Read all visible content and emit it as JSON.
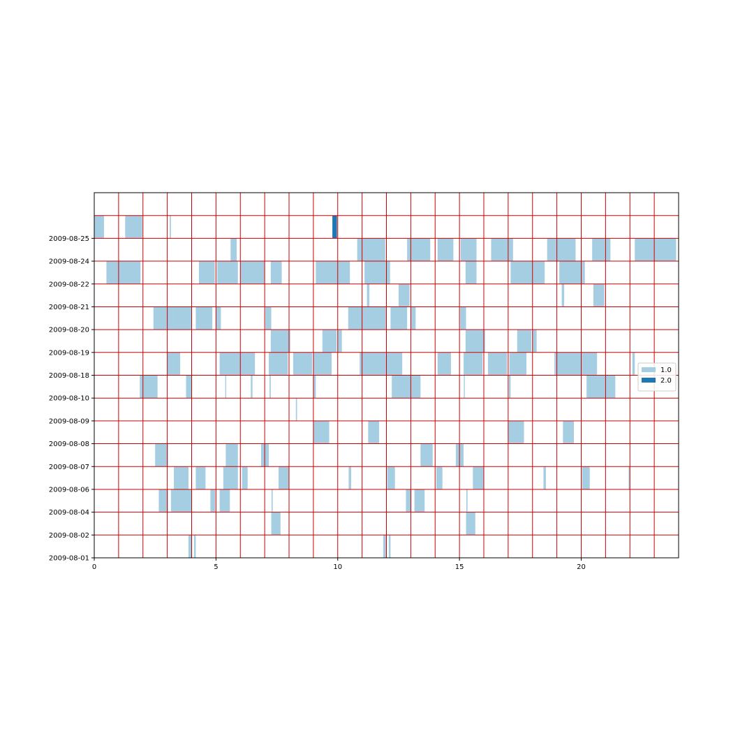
{
  "chart_data": {
    "type": "timeline-bars",
    "title": "",
    "xlabel": "",
    "ylabel": "",
    "xlim": [
      0,
      24
    ],
    "x_ticks": [
      0,
      5,
      10,
      15,
      20
    ],
    "grid": "on (red lines at every hour and every row boundary)",
    "grid_color": "#cc0000",
    "rows": [
      "2009-08-01",
      "2009-08-02",
      "2009-08-04",
      "2009-08-06",
      "2009-08-07",
      "2009-08-08",
      "2009-08-09",
      "2009-08-10",
      "2009-08-18",
      "2009-08-19",
      "2009-08-20",
      "2009-08-21",
      "2009-08-22",
      "2009-08-24",
      "2009-08-25",
      ""
    ],
    "y_tick_labels": [
      "2009-08-01",
      "2009-08-02",
      "2009-08-04",
      "2009-08-06",
      "2009-08-07",
      "2009-08-08",
      "2009-08-09",
      "2009-08-10",
      "2009-08-18",
      "2009-08-19",
      "2009-08-20",
      "2009-08-21",
      "2009-08-22",
      "2009-08-24",
      "2009-08-25"
    ],
    "legend": {
      "placement": "right",
      "entries": [
        {
          "label": "1.0",
          "color": "#a6cee3"
        },
        {
          "label": "2.0",
          "color": "#1f78b4"
        }
      ]
    },
    "series": [
      {
        "name": "1.0",
        "color": "#a6cee3",
        "segments": [
          {
            "row": 0,
            "start": 3.87,
            "end": 4.0
          },
          {
            "row": 0,
            "start": 4.1,
            "end": 4.17
          },
          {
            "row": 0,
            "start": 11.87,
            "end": 12.02
          },
          {
            "row": 0,
            "start": 12.1,
            "end": 12.17
          },
          {
            "row": 1,
            "start": 7.27,
            "end": 7.65
          },
          {
            "row": 1,
            "start": 15.27,
            "end": 15.65
          },
          {
            "row": 2,
            "start": 2.65,
            "end": 3.03
          },
          {
            "row": 2,
            "start": 3.15,
            "end": 4.0
          },
          {
            "row": 2,
            "start": 4.77,
            "end": 4.97
          },
          {
            "row": 2,
            "start": 5.15,
            "end": 5.57
          },
          {
            "row": 2,
            "start": 7.28,
            "end": 7.33
          },
          {
            "row": 2,
            "start": 12.8,
            "end": 13.03
          },
          {
            "row": 2,
            "start": 13.15,
            "end": 13.57
          },
          {
            "row": 2,
            "start": 15.28,
            "end": 15.33
          },
          {
            "row": 3,
            "start": 3.27,
            "end": 3.87
          },
          {
            "row": 3,
            "start": 4.17,
            "end": 4.57
          },
          {
            "row": 3,
            "start": 5.3,
            "end": 5.9
          },
          {
            "row": 3,
            "start": 6.07,
            "end": 6.3
          },
          {
            "row": 3,
            "start": 7.57,
            "end": 8.0
          },
          {
            "row": 3,
            "start": 10.45,
            "end": 10.55
          },
          {
            "row": 3,
            "start": 12.03,
            "end": 12.35
          },
          {
            "row": 3,
            "start": 14.05,
            "end": 14.3
          },
          {
            "row": 3,
            "start": 15.55,
            "end": 16.0
          },
          {
            "row": 3,
            "start": 18.45,
            "end": 18.55
          },
          {
            "row": 3,
            "start": 20.03,
            "end": 20.35
          },
          {
            "row": 3,
            "start": 21.95,
            "end": 22.0
          },
          {
            "row": 4,
            "start": 2.5,
            "end": 3.03
          },
          {
            "row": 4,
            "start": 5.4,
            "end": 5.9
          },
          {
            "row": 4,
            "start": 6.85,
            "end": 7.17
          },
          {
            "row": 4,
            "start": 13.4,
            "end": 13.9
          },
          {
            "row": 4,
            "start": 14.85,
            "end": 15.17
          },
          {
            "row": 5,
            "start": 9.0,
            "end": 9.65
          },
          {
            "row": 5,
            "start": 11.25,
            "end": 11.7
          },
          {
            "row": 5,
            "start": 17.0,
            "end": 17.65
          },
          {
            "row": 5,
            "start": 19.25,
            "end": 19.7
          },
          {
            "row": 6,
            "start": 8.28,
            "end": 8.33
          },
          {
            "row": 7,
            "start": 1.87,
            "end": 2.6
          },
          {
            "row": 7,
            "start": 3.77,
            "end": 4.0
          },
          {
            "row": 7,
            "start": 5.38,
            "end": 5.42
          },
          {
            "row": 7,
            "start": 6.43,
            "end": 6.5
          },
          {
            "row": 7,
            "start": 7.2,
            "end": 7.25
          },
          {
            "row": 7,
            "start": 9.0,
            "end": 9.1
          },
          {
            "row": 7,
            "start": 12.22,
            "end": 13.4
          },
          {
            "row": 7,
            "start": 15.18,
            "end": 15.22
          },
          {
            "row": 7,
            "start": 17.03,
            "end": 17.1
          },
          {
            "row": 7,
            "start": 20.22,
            "end": 21.4
          },
          {
            "row": 8,
            "start": 3.0,
            "end": 3.53
          },
          {
            "row": 8,
            "start": 5.15,
            "end": 6.6
          },
          {
            "row": 8,
            "start": 7.17,
            "end": 7.95
          },
          {
            "row": 8,
            "start": 8.17,
            "end": 8.95
          },
          {
            "row": 8,
            "start": 9.0,
            "end": 9.75
          },
          {
            "row": 8,
            "start": 10.9,
            "end": 12.65
          },
          {
            "row": 8,
            "start": 14.1,
            "end": 14.65
          },
          {
            "row": 8,
            "start": 15.17,
            "end": 15.95
          },
          {
            "row": 8,
            "start": 16.17,
            "end": 16.95
          },
          {
            "row": 8,
            "start": 17.05,
            "end": 17.75
          },
          {
            "row": 8,
            "start": 18.9,
            "end": 20.65
          },
          {
            "row": 8,
            "start": 22.1,
            "end": 22.2
          },
          {
            "row": 9,
            "start": 7.25,
            "end": 8.05
          },
          {
            "row": 9,
            "start": 9.37,
            "end": 9.95
          },
          {
            "row": 9,
            "start": 10.0,
            "end": 10.17
          },
          {
            "row": 9,
            "start": 15.25,
            "end": 16.05
          },
          {
            "row": 9,
            "start": 17.37,
            "end": 17.95
          },
          {
            "row": 9,
            "start": 18.0,
            "end": 18.17
          },
          {
            "row": 10,
            "start": 2.43,
            "end": 4.0
          },
          {
            "row": 10,
            "start": 4.17,
            "end": 4.85
          },
          {
            "row": 10,
            "start": 5.0,
            "end": 5.2
          },
          {
            "row": 10,
            "start": 7.03,
            "end": 7.27
          },
          {
            "row": 10,
            "start": 10.43,
            "end": 12.0
          },
          {
            "row": 10,
            "start": 12.17,
            "end": 12.85
          },
          {
            "row": 10,
            "start": 13.0,
            "end": 13.2
          },
          {
            "row": 10,
            "start": 15.03,
            "end": 15.27
          },
          {
            "row": 11,
            "start": 11.2,
            "end": 11.3
          },
          {
            "row": 11,
            "start": 12.5,
            "end": 12.95
          },
          {
            "row": 11,
            "start": 19.2,
            "end": 19.3
          },
          {
            "row": 11,
            "start": 20.5,
            "end": 20.95
          },
          {
            "row": 12,
            "start": 0.5,
            "end": 1.9
          },
          {
            "row": 12,
            "start": 4.3,
            "end": 4.95
          },
          {
            "row": 12,
            "start": 5.05,
            "end": 5.9
          },
          {
            "row": 12,
            "start": 6.0,
            "end": 7.0
          },
          {
            "row": 12,
            "start": 7.25,
            "end": 7.7
          },
          {
            "row": 12,
            "start": 9.1,
            "end": 10.5
          },
          {
            "row": 12,
            "start": 11.1,
            "end": 12.15
          },
          {
            "row": 12,
            "start": 15.25,
            "end": 15.7
          },
          {
            "row": 12,
            "start": 17.1,
            "end": 18.5
          },
          {
            "row": 12,
            "start": 19.1,
            "end": 20.15
          },
          {
            "row": 13,
            "start": 5.6,
            "end": 5.85
          },
          {
            "row": 13,
            "start": 10.8,
            "end": 11.95
          },
          {
            "row": 13,
            "start": 12.85,
            "end": 13.8
          },
          {
            "row": 13,
            "start": 14.1,
            "end": 14.75
          },
          {
            "row": 13,
            "start": 15.05,
            "end": 15.7
          },
          {
            "row": 13,
            "start": 16.3,
            "end": 17.2
          },
          {
            "row": 13,
            "start": 18.6,
            "end": 19.77
          },
          {
            "row": 13,
            "start": 20.45,
            "end": 21.2
          },
          {
            "row": 13,
            "start": 22.2,
            "end": 23.9
          },
          {
            "row": 14,
            "start": 0.0,
            "end": 0.4
          },
          {
            "row": 14,
            "start": 1.27,
            "end": 1.97
          },
          {
            "row": 14,
            "start": 3.1,
            "end": 3.15
          }
        ]
      },
      {
        "name": "2.0",
        "color": "#1f78b4",
        "segments": [
          {
            "row": 14,
            "start": 9.78,
            "end": 9.97
          }
        ]
      }
    ]
  }
}
